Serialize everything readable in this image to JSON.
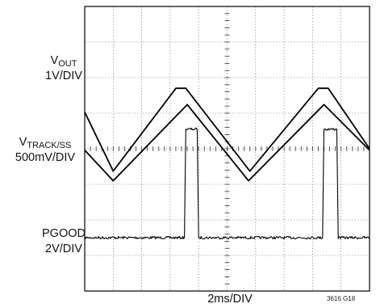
{
  "chart_data": {
    "type": "line",
    "title": "",
    "xlabel": "2ms/DIV",
    "figure_id": "3616 G18",
    "grid": true,
    "divisions": {
      "x": 10,
      "y": 8
    },
    "x_unit": "ms",
    "x_range": [
      0,
      20
    ],
    "series": [
      {
        "name_main": "V",
        "name_sub": "OUT",
        "scale": "1V/DIV",
        "unit": "V",
        "y_range": [
          -4.7,
          3.3
        ],
        "color": "#000000",
        "points": [
          [
            0,
            0.33
          ],
          [
            2,
            -1.33
          ],
          [
            6.4,
            1.0
          ],
          [
            7.1,
            1.0
          ],
          [
            11.6,
            -1.33
          ],
          [
            16.4,
            1.0
          ],
          [
            17.1,
            1.0
          ],
          [
            20,
            -0.7
          ]
        ]
      },
      {
        "name_main": "V",
        "name_sub": "TRACK/SS",
        "scale": "500mV/DIV",
        "unit": "V",
        "y_range": [
          -0.9,
          3.1
        ],
        "color": "#000000",
        "points": [
          [
            0,
            1.08
          ],
          [
            2,
            0.65
          ],
          [
            7.2,
            1.72
          ],
          [
            11.5,
            0.65
          ],
          [
            16.8,
            1.72
          ],
          [
            20,
            1.08
          ]
        ]
      },
      {
        "name_main": "PGOOD",
        "name_sub": "",
        "scale": "2V/DIV",
        "unit": "V",
        "y_range": [
          -3,
          13
        ],
        "color": "#000000",
        "points": [
          [
            0,
            0
          ],
          [
            7,
            0
          ],
          [
            7.1,
            6.1
          ],
          [
            7.9,
            6.1
          ],
          [
            8,
            0
          ],
          [
            16.7,
            0
          ],
          [
            16.8,
            6.1
          ],
          [
            17.7,
            6.1
          ],
          [
            17.8,
            0
          ],
          [
            20,
            0
          ]
        ]
      }
    ]
  }
}
